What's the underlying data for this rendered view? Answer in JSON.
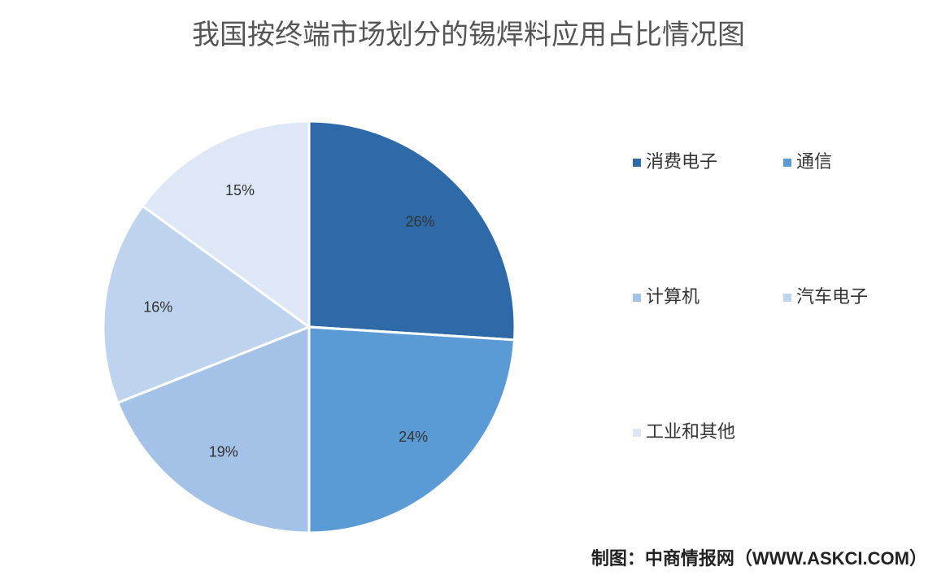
{
  "chart_data": {
    "type": "pie",
    "title": "我国按终端市场划分的锡焊料应用占比情况图",
    "categories": [
      "消费电子",
      "通信",
      "计算机",
      "汽车电子",
      "工业和其他"
    ],
    "values": [
      26,
      24,
      19,
      16,
      15
    ],
    "value_labels": [
      "26%",
      "24%",
      "19%",
      "16%",
      "15%"
    ],
    "colors": [
      "#2e6aa8",
      "#5b9bd5",
      "#a4c2e8",
      "#bed3ee",
      "#dde7f5"
    ],
    "source": "制图：中商情报网（WWW.ASKCI.COM）"
  }
}
